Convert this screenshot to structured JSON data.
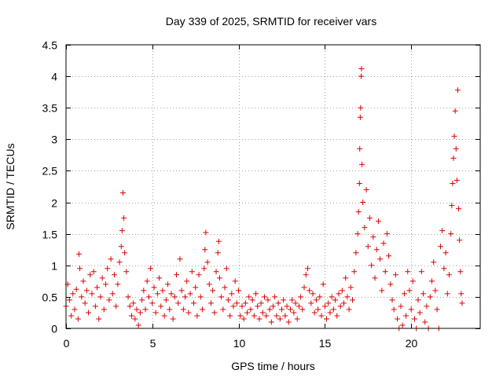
{
  "chart_data": {
    "type": "scatter",
    "title": "Day 339 of 2025, SRMTID for receiver vars",
    "xlabel": "GPS time / hours",
    "ylabel": "SRMTID / TECUs",
    "xlim": [
      0,
      24
    ],
    "ylim": [
      0,
      4.5
    ],
    "x_ticks": [
      0,
      5,
      10,
      15,
      20
    ],
    "x_tick_labels": [
      "0",
      "5",
      "10",
      "15",
      "20"
    ],
    "y_ticks": [
      0,
      0.5,
      1,
      1.5,
      2,
      2.5,
      3,
      3.5,
      4,
      4.5
    ],
    "y_tick_labels": [
      "0",
      "0.5",
      "1",
      "1.5",
      "2",
      "2.5",
      "3",
      "3.5",
      "4",
      "4.5"
    ],
    "grid": true,
    "marker": "+",
    "color": "#e00000",
    "series": [
      {
        "name": "SRMTID",
        "points": [
          [
            0.0,
            0.35
          ],
          [
            0.1,
            0.7
          ],
          [
            0.2,
            0.45
          ],
          [
            0.3,
            0.2
          ],
          [
            0.4,
            0.55
          ],
          [
            0.5,
            0.3
          ],
          [
            0.6,
            0.62
          ],
          [
            0.7,
            0.15
          ],
          [
            0.75,
            1.18
          ],
          [
            0.8,
            0.95
          ],
          [
            0.9,
            0.5
          ],
          [
            1.0,
            0.75
          ],
          [
            1.1,
            0.4
          ],
          [
            1.2,
            0.6
          ],
          [
            1.3,
            0.25
          ],
          [
            1.4,
            0.85
          ],
          [
            1.5,
            0.55
          ],
          [
            1.6,
            0.9
          ],
          [
            1.7,
            0.35
          ],
          [
            1.8,
            0.65
          ],
          [
            1.9,
            0.15
          ],
          [
            2.0,
            0.5
          ],
          [
            2.1,
            0.8
          ],
          [
            2.2,
            0.3
          ],
          [
            2.3,
            0.7
          ],
          [
            2.4,
            0.95
          ],
          [
            2.5,
            0.45
          ],
          [
            2.6,
            1.1
          ],
          [
            2.7,
            0.55
          ],
          [
            2.8,
            0.85
          ],
          [
            2.9,
            0.35
          ],
          [
            3.0,
            0.7
          ],
          [
            3.1,
            1.05
          ],
          [
            3.2,
            1.3
          ],
          [
            3.25,
            1.55
          ],
          [
            3.3,
            2.15
          ],
          [
            3.35,
            1.75
          ],
          [
            3.4,
            1.2
          ],
          [
            3.5,
            0.9
          ],
          [
            3.6,
            0.5
          ],
          [
            3.7,
            0.35
          ],
          [
            3.8,
            0.2
          ],
          [
            3.9,
            0.4
          ],
          [
            4.0,
            0.15
          ],
          [
            4.1,
            0.3
          ],
          [
            4.2,
            0.05
          ],
          [
            4.3,
            0.25
          ],
          [
            4.4,
            0.45
          ],
          [
            4.5,
            0.6
          ],
          [
            4.6,
            0.3
          ],
          [
            4.7,
            0.75
          ],
          [
            4.8,
            0.5
          ],
          [
            4.9,
            0.95
          ],
          [
            5.0,
            0.4
          ],
          [
            5.1,
            0.65
          ],
          [
            5.2,
            0.25
          ],
          [
            5.3,
            0.55
          ],
          [
            5.4,
            0.8
          ],
          [
            5.5,
            0.35
          ],
          [
            5.6,
            0.6
          ],
          [
            5.7,
            0.2
          ],
          [
            5.8,
            0.45
          ],
          [
            5.9,
            0.7
          ],
          [
            6.0,
            0.3
          ],
          [
            6.1,
            0.55
          ],
          [
            6.2,
            0.15
          ],
          [
            6.3,
            0.5
          ],
          [
            6.4,
            0.85
          ],
          [
            6.5,
            0.4
          ],
          [
            6.6,
            1.1
          ],
          [
            6.7,
            0.6
          ],
          [
            6.8,
            0.3
          ],
          [
            6.9,
            0.5
          ],
          [
            7.0,
            0.75
          ],
          [
            7.1,
            0.25
          ],
          [
            7.2,
            0.55
          ],
          [
            7.3,
            0.9
          ],
          [
            7.4,
            0.4
          ],
          [
            7.5,
            0.65
          ],
          [
            7.6,
            0.2
          ],
          [
            7.7,
            0.85
          ],
          [
            7.8,
            0.5
          ],
          [
            7.9,
            0.3
          ],
          [
            8.0,
            0.95
          ],
          [
            8.05,
            1.25
          ],
          [
            8.1,
            1.52
          ],
          [
            8.2,
            1.05
          ],
          [
            8.3,
            0.7
          ],
          [
            8.4,
            0.4
          ],
          [
            8.5,
            0.6
          ],
          [
            8.6,
            0.25
          ],
          [
            8.7,
            0.9
          ],
          [
            8.8,
            1.2
          ],
          [
            8.85,
            1.38
          ],
          [
            8.9,
            0.8
          ],
          [
            9.0,
            0.5
          ],
          [
            9.1,
            0.3
          ],
          [
            9.2,
            0.65
          ],
          [
            9.3,
            0.95
          ],
          [
            9.4,
            0.45
          ],
          [
            9.5,
            0.2
          ],
          [
            9.6,
            0.55
          ],
          [
            9.7,
            0.35
          ],
          [
            9.8,
            0.75
          ],
          [
            9.9,
            0.4
          ],
          [
            10.0,
            0.6
          ],
          [
            10.1,
            0.2
          ],
          [
            10.2,
            0.35
          ],
          [
            10.3,
            0.15
          ],
          [
            10.4,
            0.4
          ],
          [
            10.5,
            0.25
          ],
          [
            10.6,
            0.5
          ],
          [
            10.7,
            0.3
          ],
          [
            10.8,
            0.45
          ],
          [
            10.9,
            0.2
          ],
          [
            11.0,
            0.55
          ],
          [
            11.1,
            0.35
          ],
          [
            11.2,
            0.15
          ],
          [
            11.3,
            0.4
          ],
          [
            11.4,
            0.25
          ],
          [
            11.5,
            0.5
          ],
          [
            11.6,
            0.2
          ],
          [
            11.7,
            0.45
          ],
          [
            11.8,
            0.3
          ],
          [
            11.9,
            0.1
          ],
          [
            12.0,
            0.35
          ],
          [
            12.1,
            0.5
          ],
          [
            12.2,
            0.2
          ],
          [
            12.3,
            0.4
          ],
          [
            12.4,
            0.15
          ],
          [
            12.5,
            0.3
          ],
          [
            12.6,
            0.45
          ],
          [
            12.7,
            0.2
          ],
          [
            12.8,
            0.35
          ],
          [
            12.9,
            0.1
          ],
          [
            13.0,
            0.3
          ],
          [
            13.1,
            0.45
          ],
          [
            13.2,
            0.25
          ],
          [
            13.3,
            0.4
          ],
          [
            13.4,
            0.15
          ],
          [
            13.5,
            0.35
          ],
          [
            13.6,
            0.5
          ],
          [
            13.7,
            0.3
          ],
          [
            13.8,
            0.65
          ],
          [
            13.9,
            0.85
          ],
          [
            14.0,
            0.95
          ],
          [
            14.1,
            0.6
          ],
          [
            14.2,
            0.4
          ],
          [
            14.3,
            0.55
          ],
          [
            14.4,
            0.25
          ],
          [
            14.5,
            0.45
          ],
          [
            14.6,
            0.3
          ],
          [
            14.7,
            0.5
          ],
          [
            14.8,
            0.2
          ],
          [
            14.9,
            0.7
          ],
          [
            15.0,
            0.35
          ],
          [
            15.1,
            0.15
          ],
          [
            15.2,
            0.4
          ],
          [
            15.3,
            0.25
          ],
          [
            15.4,
            0.5
          ],
          [
            15.5,
            0.3
          ],
          [
            15.6,
            0.45
          ],
          [
            15.7,
            0.2
          ],
          [
            15.8,
            0.55
          ],
          [
            15.9,
            0.35
          ],
          [
            16.0,
            0.6
          ],
          [
            16.1,
            0.4
          ],
          [
            16.2,
            0.8
          ],
          [
            16.3,
            0.5
          ],
          [
            16.4,
            0.3
          ],
          [
            16.5,
            0.65
          ],
          [
            16.6,
            0.45
          ],
          [
            16.7,
            0.9
          ],
          [
            16.8,
            1.2
          ],
          [
            16.9,
            1.5
          ],
          [
            16.95,
            1.85
          ],
          [
            17.0,
            2.3
          ],
          [
            17.02,
            2.85
          ],
          [
            17.05,
            3.35
          ],
          [
            17.07,
            3.5
          ],
          [
            17.1,
            4.0
          ],
          [
            17.12,
            4.12
          ],
          [
            17.15,
            2.6
          ],
          [
            17.2,
            2.0
          ],
          [
            17.3,
            1.6
          ],
          [
            17.4,
            2.2
          ],
          [
            17.5,
            1.3
          ],
          [
            17.6,
            1.75
          ],
          [
            17.7,
            1.0
          ],
          [
            17.8,
            1.45
          ],
          [
            17.9,
            0.8
          ],
          [
            18.0,
            1.25
          ],
          [
            18.1,
            1.7
          ],
          [
            18.2,
            1.1
          ],
          [
            18.3,
            0.6
          ],
          [
            18.4,
            1.35
          ],
          [
            18.5,
            0.9
          ],
          [
            18.6,
            1.5
          ],
          [
            18.7,
            1.15
          ],
          [
            18.8,
            0.7
          ],
          [
            18.9,
            0.45
          ],
          [
            19.0,
            0.3
          ],
          [
            19.1,
            0.85
          ],
          [
            19.2,
            0.15
          ],
          [
            19.3,
            0.0
          ],
          [
            19.4,
            0.35
          ],
          [
            19.5,
            0.05
          ],
          [
            19.6,
            0.55
          ],
          [
            19.7,
            0.2
          ],
          [
            19.8,
            0.9
          ],
          [
            19.9,
            0.6
          ],
          [
            20.0,
            0.3
          ],
          [
            20.1,
            0.75
          ],
          [
            20.2,
            0.15
          ],
          [
            20.3,
            0.0
          ],
          [
            20.4,
            0.45
          ],
          [
            20.5,
            0.25
          ],
          [
            20.6,
            0.9
          ],
          [
            20.7,
            0.55
          ],
          [
            20.8,
            0.1
          ],
          [
            20.9,
            0.35
          ],
          [
            21.0,
            0.0
          ],
          [
            21.1,
            0.5
          ],
          [
            21.2,
            0.75
          ],
          [
            21.3,
            1.05
          ],
          [
            21.4,
            0.6
          ],
          [
            21.5,
            0.3
          ],
          [
            21.6,
            0.0
          ],
          [
            21.7,
            1.3
          ],
          [
            21.8,
            1.55
          ],
          [
            21.9,
            0.95
          ],
          [
            22.0,
            1.2
          ],
          [
            22.1,
            0.55
          ],
          [
            22.2,
            0.85
          ],
          [
            22.3,
            1.5
          ],
          [
            22.35,
            1.95
          ],
          [
            22.4,
            2.3
          ],
          [
            22.45,
            2.7
          ],
          [
            22.5,
            3.05
          ],
          [
            22.55,
            3.45
          ],
          [
            22.6,
            2.85
          ],
          [
            22.65,
            2.35
          ],
          [
            22.7,
            3.78
          ],
          [
            22.75,
            1.9
          ],
          [
            22.8,
            1.4
          ],
          [
            22.85,
            0.9
          ],
          [
            22.9,
            0.55
          ],
          [
            22.95,
            0.4
          ]
        ]
      }
    ]
  }
}
